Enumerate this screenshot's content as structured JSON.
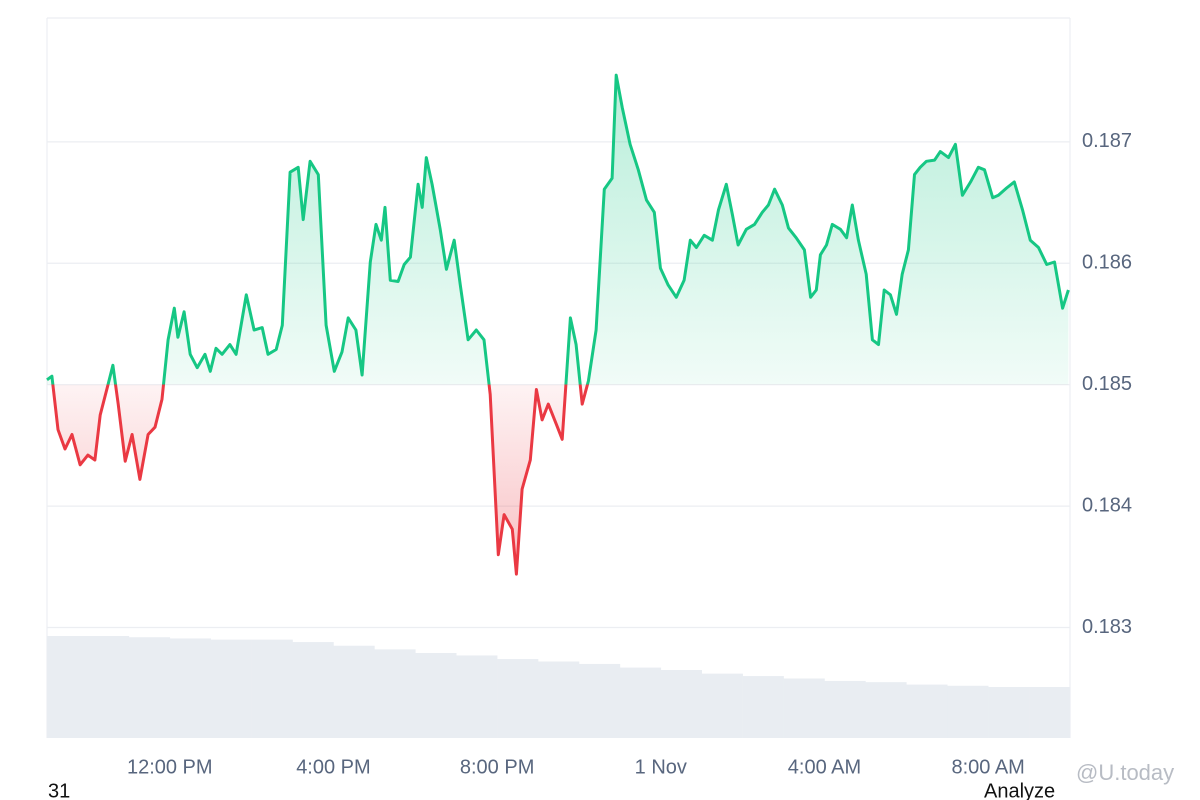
{
  "chart_data": {
    "type": "line",
    "baseline": 0.185,
    "up_color": "#16c784",
    "down_color": "#ea3943",
    "volume_color": "#e9edf2",
    "grid": true,
    "date_label": "31",
    "button": "Analyze",
    "watermark": "@U.today",
    "xlim": [
      9,
      34
    ],
    "xticks": [
      {
        "value": 12,
        "label": "12:00 PM"
      },
      {
        "value": 16,
        "label": "4:00 PM"
      },
      {
        "value": 20,
        "label": "8:00 PM"
      },
      {
        "value": 24,
        "label": "1 Nov"
      },
      {
        "value": 28,
        "label": "4:00 AM"
      },
      {
        "value": 32,
        "label": "8:00 AM"
      }
    ],
    "ylim": [
      0.18209,
      0.18802
    ],
    "yticks": [
      0.183,
      0.184,
      0.185,
      0.186,
      0.187
    ],
    "series": [
      {
        "x": [
          9.0,
          9.12,
          9.27,
          9.44,
          9.61,
          9.81,
          10.0,
          10.17,
          10.3,
          10.49,
          10.61,
          10.74,
          10.91,
          11.08,
          11.27,
          11.47,
          11.64,
          11.81,
          11.96,
          12.11,
          12.2,
          12.35,
          12.5,
          12.67,
          12.86,
          12.99,
          13.13,
          13.28,
          13.47,
          13.62,
          13.87,
          14.06,
          14.26,
          14.4,
          14.6,
          14.75,
          14.94,
          15.14,
          15.26,
          15.43,
          15.63,
          15.82,
          16.02,
          16.21,
          16.36,
          16.55,
          16.7,
          16.9,
          17.04,
          17.17,
          17.26,
          17.39,
          17.58,
          17.73,
          17.88,
          18.07,
          18.17,
          18.27,
          18.41,
          18.61,
          18.76,
          18.95,
          19.1,
          19.29,
          19.49,
          19.68,
          19.83,
          20.03,
          20.17,
          20.37,
          20.47,
          20.61,
          20.81,
          20.96,
          21.1,
          21.25,
          21.45,
          21.59,
          21.79,
          21.93,
          22.08,
          22.23,
          22.42,
          22.62,
          22.81,
          22.91,
          23.06,
          23.25,
          23.45,
          23.65,
          23.84,
          23.99,
          24.18,
          24.38,
          24.57,
          24.72,
          24.87,
          25.06,
          25.26,
          25.41,
          25.6,
          25.75,
          25.89,
          26.09,
          26.29,
          26.48,
          26.63,
          26.78,
          26.97,
          27.12,
          27.31,
          27.51,
          27.66,
          27.8,
          27.9,
          28.05,
          28.19,
          28.39,
          28.54,
          28.68,
          28.83,
          29.02,
          29.17,
          29.32,
          29.46,
          29.61,
          29.76,
          29.9,
          30.05,
          30.2,
          30.34,
          30.49,
          30.69,
          30.83,
          31.03,
          31.2,
          31.37,
          31.57,
          31.76,
          31.91,
          32.11,
          32.25,
          32.45,
          32.64,
          32.84,
          33.03,
          33.23,
          33.43,
          33.62,
          33.82,
          33.96
        ],
        "values": [
          0.18504,
          0.18507,
          0.18463,
          0.18447,
          0.18459,
          0.18434,
          0.18442,
          0.18438,
          0.18475,
          0.185,
          0.18516,
          0.18484,
          0.18437,
          0.18459,
          0.18422,
          0.18459,
          0.18465,
          0.18488,
          0.18537,
          0.18563,
          0.18539,
          0.1856,
          0.18525,
          0.18514,
          0.18525,
          0.18511,
          0.1853,
          0.18525,
          0.18533,
          0.18525,
          0.18574,
          0.18545,
          0.18547,
          0.18525,
          0.18529,
          0.18549,
          0.18675,
          0.18679,
          0.18636,
          0.18684,
          0.18673,
          0.18549,
          0.18511,
          0.18527,
          0.18555,
          0.18545,
          0.18508,
          0.18601,
          0.18632,
          0.18619,
          0.18646,
          0.18586,
          0.18585,
          0.18599,
          0.18605,
          0.18665,
          0.18646,
          0.18687,
          0.18665,
          0.18628,
          0.18595,
          0.18619,
          0.18582,
          0.18537,
          0.18545,
          0.18537,
          0.18492,
          0.1836,
          0.18393,
          0.18381,
          0.18344,
          0.18414,
          0.18438,
          0.18496,
          0.18471,
          0.18484,
          0.18467,
          0.18455,
          0.18555,
          0.18533,
          0.18484,
          0.18503,
          0.18545,
          0.18661,
          0.1867,
          0.18755,
          0.18728,
          0.18698,
          0.18677,
          0.18652,
          0.18642,
          0.18596,
          0.18582,
          0.18572,
          0.18586,
          0.18619,
          0.18613,
          0.18623,
          0.18619,
          0.18644,
          0.18665,
          0.1864,
          0.18615,
          0.18628,
          0.18632,
          0.18642,
          0.18648,
          0.18661,
          0.18648,
          0.18629,
          0.18621,
          0.18611,
          0.18572,
          0.18578,
          0.18607,
          0.18615,
          0.18632,
          0.18628,
          0.18621,
          0.18648,
          0.18619,
          0.18591,
          0.18537,
          0.18533,
          0.18578,
          0.18574,
          0.18558,
          0.18591,
          0.18611,
          0.18673,
          0.18679,
          0.18684,
          0.18685,
          0.18692,
          0.18687,
          0.18698,
          0.18656,
          0.18667,
          0.18679,
          0.18677,
          0.18654,
          0.18656,
          0.18662,
          0.18667,
          0.18644,
          0.18619,
          0.18613,
          0.18599,
          0.18601,
          0.18563,
          0.18578
        ]
      }
    ],
    "volume": {
      "x": [
        9.5,
        10.5,
        11.5,
        12.5,
        13.5,
        14.5,
        15.5,
        16.5,
        17.5,
        18.5,
        19.5,
        20.5,
        21.5,
        22.5,
        23.5,
        24.5,
        25.5,
        26.5,
        27.5,
        28.5,
        29.5,
        30.5,
        31.5,
        32.5,
        33.5
      ],
      "values": [
        0.18293,
        0.18293,
        0.18292,
        0.18291,
        0.1829,
        0.1829,
        0.18288,
        0.18285,
        0.18282,
        0.18279,
        0.18277,
        0.18274,
        0.18272,
        0.1827,
        0.18267,
        0.18265,
        0.18262,
        0.1826,
        0.18258,
        0.18256,
        0.18255,
        0.18253,
        0.18252,
        0.18251,
        0.18251
      ]
    }
  }
}
